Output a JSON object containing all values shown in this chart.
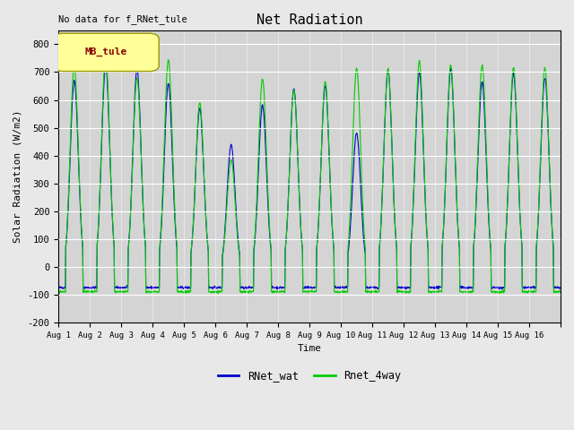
{
  "title": "Net Radiation",
  "ylabel": "Solar Radiation (W/m2)",
  "xlabel": "Time",
  "ylim": [
    -200,
    850
  ],
  "yticks": [
    -200,
    -100,
    0,
    100,
    200,
    300,
    400,
    500,
    600,
    700,
    800
  ],
  "xtick_labels": [
    "Aug 1",
    "Aug 2",
    "Aug 3",
    "Aug 4",
    "Aug 5",
    "Aug 6",
    "Aug 7",
    "Aug 8",
    "Aug 9",
    "Aug 10",
    "Aug 11",
    "Aug 12",
    "Aug 13",
    "Aug 14",
    "Aug 15",
    "Aug 16"
  ],
  "annotation_text": "No data for f_RNet_tule",
  "legend_box_text": "MB_tule",
  "legend_entries": [
    "RNet_wat",
    "Rnet_4way"
  ],
  "line_colors": [
    "#0000cc",
    "#00cc00"
  ],
  "background_color": "#e8e8e8",
  "plot_bg_color": "#d4d4d4",
  "day_peaks_wat": [
    670,
    725,
    710,
    660,
    570,
    440,
    580,
    640,
    650,
    480,
    705,
    700,
    710,
    665,
    695,
    680
  ],
  "day_peaks_4way": [
    720,
    760,
    680,
    745,
    590,
    385,
    675,
    635,
    665,
    715,
    710,
    740,
    725,
    725,
    715,
    715
  ],
  "night_val_wat": -75,
  "night_val_4way": -90,
  "n_days": 16,
  "pts_per_day": 96
}
